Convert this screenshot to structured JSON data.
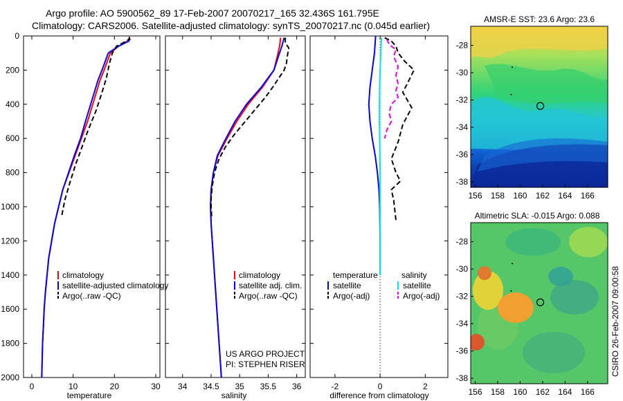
{
  "figure": {
    "title_line1": "Argo profile: AO 5900562_89 17-Feb-2007 20070217_165 32.436S 161.795E",
    "title_line2": "Climatology: CARS2006. Satellite-adjusted climatology: synTS_20070217.nc (0.045d earlier)",
    "side_credit": "CSIRO 26-Feb-2007 09:00:58",
    "project_line1": "US ARGO PROJECT",
    "project_line2": "PI: STEPHEN RISER"
  },
  "colors": {
    "climatology": "#ff0000",
    "satellite": "#0000ff",
    "argo": "#000000",
    "sal_satellite": "#00e5e5",
    "sal_argo": "#e600e6"
  },
  "chart_data": [
    {
      "id": "temperature",
      "type": "line",
      "xlabel": "temperature",
      "ylabel": "",
      "xlim": [
        -2,
        31
      ],
      "ylim": [
        2000,
        0
      ],
      "xticks": [
        "0",
        "10",
        "20",
        "30"
      ],
      "yticks": [
        "0",
        "200",
        "400",
        "600",
        "800",
        "1000",
        "1200",
        "1400",
        "1600",
        "1800",
        "2000"
      ],
      "legend": [
        "climatology",
        "satellite-adjusted climatology",
        "Argo(..raw -QC)"
      ],
      "series": [
        {
          "name": "climatology",
          "style": "solid",
          "points": [
            [
              23.5,
              15
            ],
            [
              23.2,
              30
            ],
            [
              21.0,
              60
            ],
            [
              19.0,
              100
            ],
            [
              17.5,
              200
            ],
            [
              16.5,
              260
            ],
            [
              15.0,
              380
            ],
            [
              13.5,
              500
            ],
            [
              12.0,
              600
            ],
            [
              10.5,
              700
            ],
            [
              9.0,
              800
            ],
            [
              7.5,
              900
            ],
            [
              6.5,
              1000
            ],
            [
              5.5,
              1100
            ],
            [
              4.8,
              1200
            ],
            [
              4.1,
              1300
            ],
            [
              3.7,
              1400
            ],
            [
              3.3,
              1500
            ],
            [
              3.0,
              1600
            ],
            [
              2.8,
              1700
            ],
            [
              2.6,
              1800
            ],
            [
              2.5,
              1900
            ],
            [
              2.4,
              2000
            ]
          ]
        },
        {
          "name": "satellite-adjusted climatology",
          "style": "solid",
          "points": [
            [
              23.8,
              15
            ],
            [
              23.5,
              30
            ],
            [
              21.0,
              60
            ],
            [
              18.5,
              100
            ],
            [
              17.0,
              200
            ],
            [
              16.0,
              260
            ],
            [
              14.5,
              380
            ],
            [
              13.0,
              500
            ],
            [
              11.8,
              600
            ],
            [
              10.3,
              700
            ],
            [
              8.9,
              800
            ],
            [
              7.5,
              900
            ],
            [
              6.5,
              1000
            ],
            [
              5.5,
              1100
            ],
            [
              4.8,
              1200
            ],
            [
              4.1,
              1300
            ],
            [
              3.7,
              1400
            ],
            [
              3.3,
              1500
            ],
            [
              3.0,
              1600
            ],
            [
              2.8,
              1700
            ],
            [
              2.6,
              1800
            ],
            [
              2.5,
              1900
            ],
            [
              2.4,
              2000
            ]
          ]
        },
        {
          "name": "Argo(..raw -QC)",
          "style": "dashed",
          "points": [
            [
              23.6,
              5
            ],
            [
              23.6,
              20
            ],
            [
              22.5,
              35
            ],
            [
              20.5,
              60
            ],
            [
              19.5,
              100
            ],
            [
              18.8,
              160
            ],
            [
              18.0,
              250
            ],
            [
              17.0,
              330
            ],
            [
              15.5,
              440
            ],
            [
              13.5,
              560
            ],
            [
              12.0,
              660
            ],
            [
              10.5,
              760
            ],
            [
              9.2,
              860
            ],
            [
              8.0,
              960
            ],
            [
              7.2,
              1060
            ]
          ]
        }
      ]
    },
    {
      "id": "salinity",
      "type": "line",
      "xlabel": "salinity",
      "ylabel": "",
      "xlim": [
        33.7,
        36.15
      ],
      "ylim": [
        2000,
        0
      ],
      "xticks": [
        "34",
        "34.5",
        "35",
        "35.5",
        "36"
      ],
      "yticks": [],
      "legend": [
        "climatology",
        "satellite adj. clim.",
        "Argo(..raw -QC)"
      ],
      "series": [
        {
          "name": "climatology",
          "style": "solid",
          "points": [
            [
              35.72,
              10
            ],
            [
              35.7,
              60
            ],
            [
              35.66,
              120
            ],
            [
              35.6,
              200
            ],
            [
              35.4,
              300
            ],
            [
              35.15,
              400
            ],
            [
              34.95,
              500
            ],
            [
              34.78,
              600
            ],
            [
              34.62,
              700
            ],
            [
              34.54,
              800
            ],
            [
              34.5,
              900
            ],
            [
              34.49,
              1000
            ],
            [
              34.5,
              1100
            ],
            [
              34.52,
              1200
            ],
            [
              34.54,
              1300
            ],
            [
              34.56,
              1400
            ],
            [
              34.58,
              1500
            ],
            [
              34.6,
              1600
            ],
            [
              34.62,
              1700
            ],
            [
              34.64,
              1800
            ],
            [
              34.66,
              1900
            ],
            [
              34.68,
              2000
            ]
          ]
        },
        {
          "name": "satellite adj. clim.",
          "style": "solid",
          "points": [
            [
              35.78,
              10
            ],
            [
              35.74,
              60
            ],
            [
              35.68,
              120
            ],
            [
              35.6,
              200
            ],
            [
              35.38,
              300
            ],
            [
              35.12,
              400
            ],
            [
              34.92,
              500
            ],
            [
              34.76,
              600
            ],
            [
              34.61,
              700
            ],
            [
              34.54,
              800
            ],
            [
              34.5,
              900
            ],
            [
              34.49,
              1000
            ],
            [
              34.5,
              1100
            ],
            [
              34.52,
              1200
            ],
            [
              34.54,
              1300
            ],
            [
              34.56,
              1400
            ],
            [
              34.58,
              1500
            ],
            [
              34.6,
              1600
            ],
            [
              34.62,
              1700
            ],
            [
              34.64,
              1800
            ],
            [
              34.66,
              1900
            ],
            [
              34.68,
              2000
            ]
          ]
        },
        {
          "name": "Argo(..raw -QC)",
          "style": "dashed",
          "points": [
            [
              35.8,
              10
            ],
            [
              35.8,
              40
            ],
            [
              35.86,
              70
            ],
            [
              35.84,
              110
            ],
            [
              35.82,
              160
            ],
            [
              35.78,
              200
            ],
            [
              35.66,
              260
            ],
            [
              35.58,
              300
            ],
            [
              35.45,
              360
            ],
            [
              35.3,
              420
            ],
            [
              35.1,
              500
            ],
            [
              34.9,
              580
            ],
            [
              34.75,
              650
            ],
            [
              34.64,
              720
            ],
            [
              34.56,
              800
            ],
            [
              34.52,
              880
            ],
            [
              34.5,
              950
            ],
            [
              34.5,
              1000
            ],
            [
              34.51,
              1060
            ]
          ]
        }
      ]
    },
    {
      "id": "difference",
      "type": "line",
      "xlabel": "difference from climatology",
      "ylabel": "",
      "xlim": [
        -3.1,
        3.0
      ],
      "ylim": [
        2000,
        0
      ],
      "xticks": [
        "-2",
        "0",
        "2"
      ],
      "yticks": [],
      "legend_temperature_header": "temperature",
      "legend_salinity_header": "salinity",
      "legend_temperature": [
        "satellite",
        "Argo(-adj)"
      ],
      "legend_salinity": [
        "satellite",
        "Argo(-adj)"
      ],
      "zero_line": true,
      "series": [
        {
          "name": "temperature satellite",
          "style": "solid",
          "points": [
            [
              -0.2,
              0
            ],
            [
              -0.25,
              100
            ],
            [
              -0.35,
              200
            ],
            [
              -0.45,
              300
            ],
            [
              -0.5,
              400
            ],
            [
              -0.45,
              500
            ],
            [
              -0.35,
              600
            ],
            [
              -0.22,
              700
            ],
            [
              -0.12,
              800
            ],
            [
              -0.05,
              900
            ],
            [
              -0.02,
              1000
            ],
            [
              0.0,
              1200
            ],
            [
              0.0,
              1400
            ]
          ]
        },
        {
          "name": "salinity satellite",
          "style": "solid",
          "points": [
            [
              0.06,
              10
            ],
            [
              0.03,
              100
            ],
            [
              0.0,
              200
            ],
            [
              -0.02,
              300
            ],
            [
              -0.03,
              400
            ],
            [
              -0.03,
              500
            ],
            [
              -0.02,
              600
            ],
            [
              -0.01,
              700
            ],
            [
              0.0,
              800
            ],
            [
              0.0,
              1000
            ],
            [
              0.0,
              1200
            ],
            [
              0.0,
              1400
            ]
          ]
        },
        {
          "name": "temperature Argo(-adj)",
          "style": "dashed",
          "points": [
            [
              0.2,
              10
            ],
            [
              0.5,
              30
            ],
            [
              0.7,
              60
            ],
            [
              0.8,
              100
            ],
            [
              1.1,
              150
            ],
            [
              1.5,
              200
            ],
            [
              1.2,
              280
            ],
            [
              1.0,
              330
            ],
            [
              1.4,
              420
            ],
            [
              1.0,
              520
            ],
            [
              0.8,
              620
            ],
            [
              0.5,
              720
            ],
            [
              0.7,
              800
            ],
            [
              0.9,
              850
            ],
            [
              0.5,
              900
            ],
            [
              0.6,
              960
            ],
            [
              0.7,
              1080
            ]
          ]
        },
        {
          "name": "salinity Argo(-adj)",
          "style": "dashed",
          "points": [
            [
              0.3,
              20
            ],
            [
              0.4,
              50
            ],
            [
              0.7,
              80
            ],
            [
              0.6,
              120
            ],
            [
              0.8,
              180
            ],
            [
              0.7,
              230
            ],
            [
              0.8,
              280
            ],
            [
              0.7,
              320
            ],
            [
              0.8,
              360
            ],
            [
              0.5,
              400
            ],
            [
              0.4,
              450
            ],
            [
              0.5,
              500
            ],
            [
              0.3,
              550
            ],
            [
              0.2,
              600
            ]
          ]
        }
      ]
    },
    {
      "id": "sst_map",
      "type": "heatmap",
      "title": "AMSR-E SST: 23.6  Argo: 23.6",
      "xticks": [
        "156",
        "158",
        "160",
        "162",
        "164",
        "166"
      ],
      "yticks": [
        "-28",
        "-30",
        "-32",
        "-34",
        "-36",
        "-38"
      ],
      "xlim": [
        155.6,
        167.8
      ],
      "ylim": [
        -38.4,
        -26.6
      ],
      "float_position": [
        161.795,
        -32.436
      ]
    },
    {
      "id": "sla_map",
      "type": "heatmap",
      "title": "Altimetric SLA: -0.015  Argo: 0.088",
      "xticks": [
        "156",
        "158",
        "160",
        "162",
        "164",
        "166"
      ],
      "yticks": [
        "-28",
        "-30",
        "-32",
        "-34",
        "-36",
        "-38"
      ],
      "xlim": [
        155.6,
        167.8
      ],
      "ylim": [
        -38.4,
        -26.6
      ],
      "float_position": [
        161.795,
        -32.436
      ]
    }
  ]
}
